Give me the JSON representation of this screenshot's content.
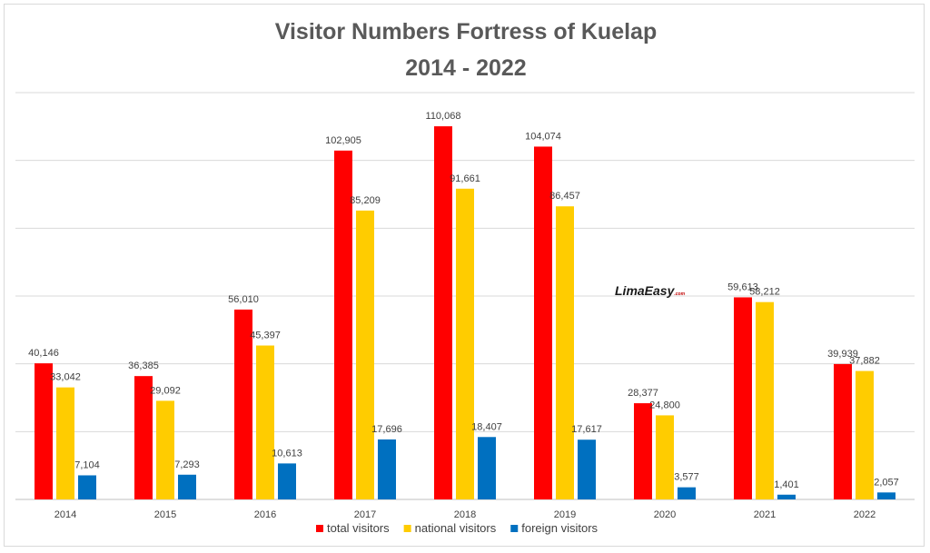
{
  "chart_data": {
    "type": "bar",
    "title": "Visitor Numbers Fortress of Kuelap",
    "subtitle": "2014 - 2022",
    "xlabel": "",
    "ylabel": "",
    "ylim": [
      0,
      120000
    ],
    "grid": true,
    "legend_position": "bottom",
    "categories": [
      "2014",
      "2015",
      "2016",
      "2017",
      "2018",
      "2019",
      "2020",
      "2021",
      "2022"
    ],
    "series": [
      {
        "name": "total visitors",
        "color": "#ff0000",
        "values": [
          40146,
          36385,
          56010,
          102905,
          110068,
          104074,
          28377,
          59613,
          39939
        ],
        "labels": [
          "40,146",
          "36,385",
          "56,010",
          "102,905",
          "110,068",
          "104,074",
          "28,377",
          "59,613",
          "39,939"
        ]
      },
      {
        "name": "national visitors",
        "color": "#ffcc00",
        "values": [
          33042,
          29092,
          45397,
          85209,
          91661,
          86457,
          24800,
          58212,
          37882
        ],
        "labels": [
          "33,042",
          "29,092",
          "45,397",
          "85,209",
          "91,661",
          "86,457",
          "24,800",
          "58,212",
          "37,882"
        ]
      },
      {
        "name": "foreign visitors",
        "color": "#0070c0",
        "values": [
          7104,
          7293,
          10613,
          17696,
          18407,
          17617,
          3577,
          1401,
          2057
        ],
        "labels": [
          "7,104",
          "7,293",
          "10,613",
          "17,696",
          "18,407",
          "17,617",
          "3,577",
          "1,401",
          "2,057"
        ]
      }
    ]
  },
  "watermark": {
    "text_main": "LimaEasy",
    "text_suffix": ".com"
  }
}
